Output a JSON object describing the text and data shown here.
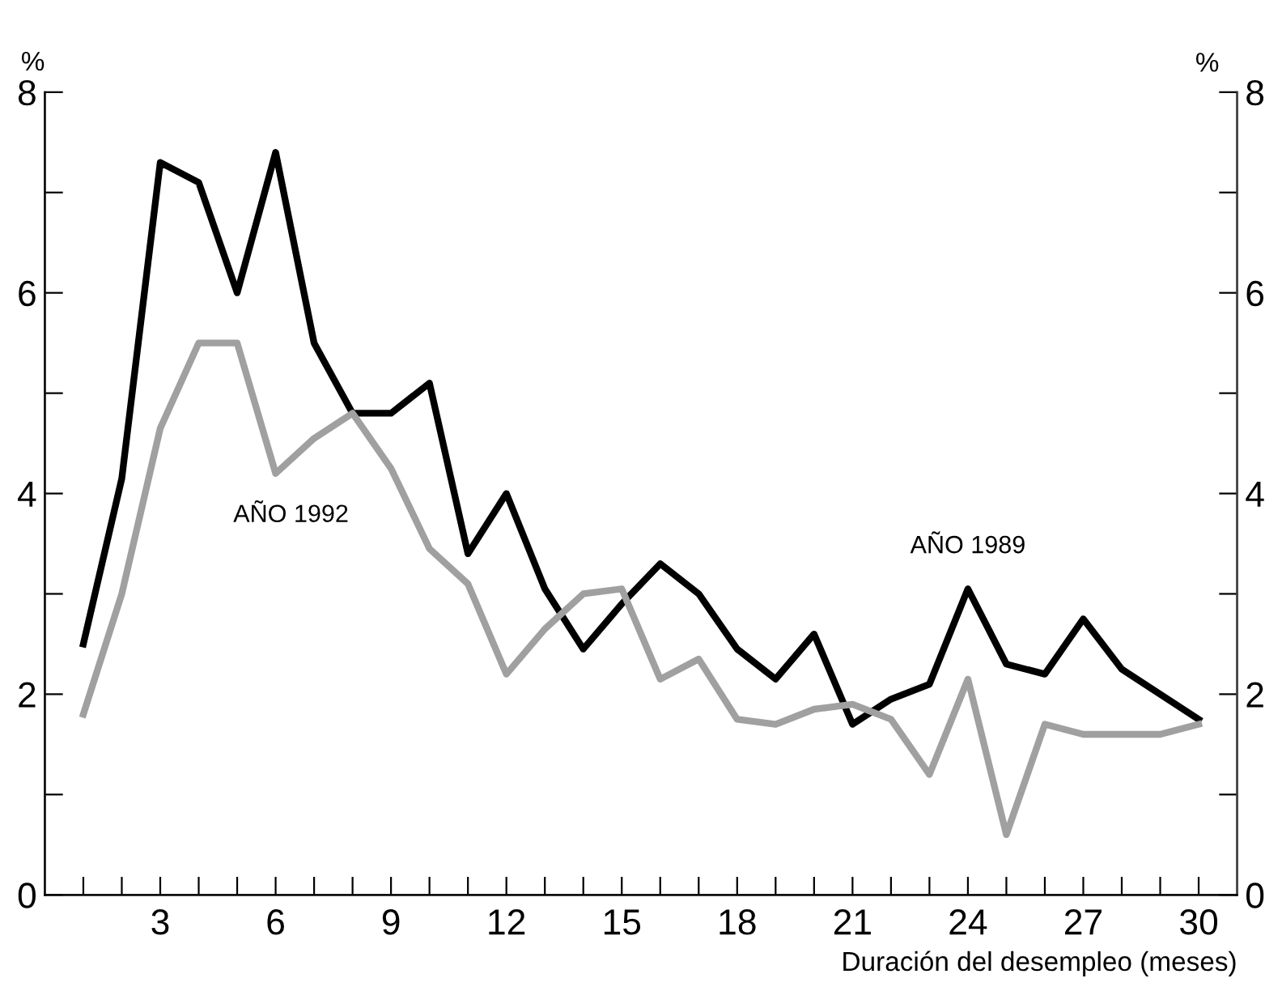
{
  "chart_data": {
    "type": "line",
    "xlabel": "Duración del desempleo (meses)",
    "ylabel": "%",
    "y2label": "%",
    "x": [
      1,
      2,
      3,
      4,
      5,
      6,
      7,
      8,
      9,
      10,
      11,
      12,
      13,
      14,
      15,
      16,
      17,
      18,
      19,
      20,
      21,
      22,
      23,
      24,
      25,
      26,
      27,
      28,
      29,
      30
    ],
    "series": [
      {
        "name": "AÑO 1989",
        "color": "#000000",
        "values": [
          2.5,
          4.15,
          7.3,
          7.1,
          6.0,
          7.4,
          5.5,
          4.8,
          4.8,
          5.1,
          3.4,
          4.0,
          3.05,
          2.45,
          2.9,
          3.3,
          3.0,
          2.45,
          2.15,
          2.6,
          1.7,
          1.95,
          2.1,
          3.05,
          2.3,
          2.2,
          2.75,
          2.25,
          2.0,
          1.75
        ]
      },
      {
        "name": "AÑO 1992",
        "color": "#a0a0a0",
        "values": [
          1.8,
          3.0,
          4.65,
          5.5,
          5.5,
          4.2,
          4.55,
          4.8,
          4.25,
          3.45,
          3.1,
          2.2,
          2.65,
          3.0,
          3.05,
          2.15,
          2.35,
          1.75,
          1.7,
          1.85,
          1.9,
          1.75,
          1.2,
          2.15,
          0.6,
          1.7,
          1.6,
          1.6,
          1.6,
          1.7
        ]
      }
    ],
    "xlim": [
      0,
      31
    ],
    "xticks": [
      {
        "value": 1,
        "label": null
      },
      {
        "value": 2,
        "label": null
      },
      3,
      {
        "value": 4,
        "label": null
      },
      {
        "value": 5,
        "label": null
      },
      6,
      {
        "value": 7,
        "label": null
      },
      {
        "value": 8,
        "label": null
      },
      9,
      {
        "value": 10,
        "label": null
      },
      {
        "value": 11,
        "label": null
      },
      12,
      {
        "value": 13,
        "label": null
      },
      {
        "value": 14,
        "label": null
      },
      15,
      {
        "value": 16,
        "label": null
      },
      {
        "value": 17,
        "label": null
      },
      18,
      {
        "value": 19,
        "label": null
      },
      {
        "value": 20,
        "label": null
      },
      21,
      {
        "value": 22,
        "label": null
      },
      {
        "value": 23,
        "label": null
      },
      24,
      {
        "value": 25,
        "label": null
      },
      {
        "value": 26,
        "label": null
      },
      27,
      {
        "value": 28,
        "label": null
      },
      {
        "value": 29,
        "label": null
      },
      30
    ],
    "ylim": [
      0,
      8
    ],
    "yticks": [
      0,
      {
        "value": 1,
        "label": null
      },
      2,
      {
        "value": 3,
        "label": null
      },
      4,
      {
        "value": 5,
        "label": null
      },
      6,
      {
        "value": 7,
        "label": null
      },
      8
    ],
    "y2lim": [
      0,
      8
    ],
    "y2ticks": [
      0,
      {
        "value": 1,
        "label": null
      },
      2,
      {
        "value": 3,
        "label": null
      },
      4,
      {
        "value": 5,
        "label": null
      },
      6,
      {
        "value": 7,
        "label": null
      },
      8
    ],
    "grid": false,
    "legend": false,
    "marker": "none",
    "line_style": "solid"
  }
}
